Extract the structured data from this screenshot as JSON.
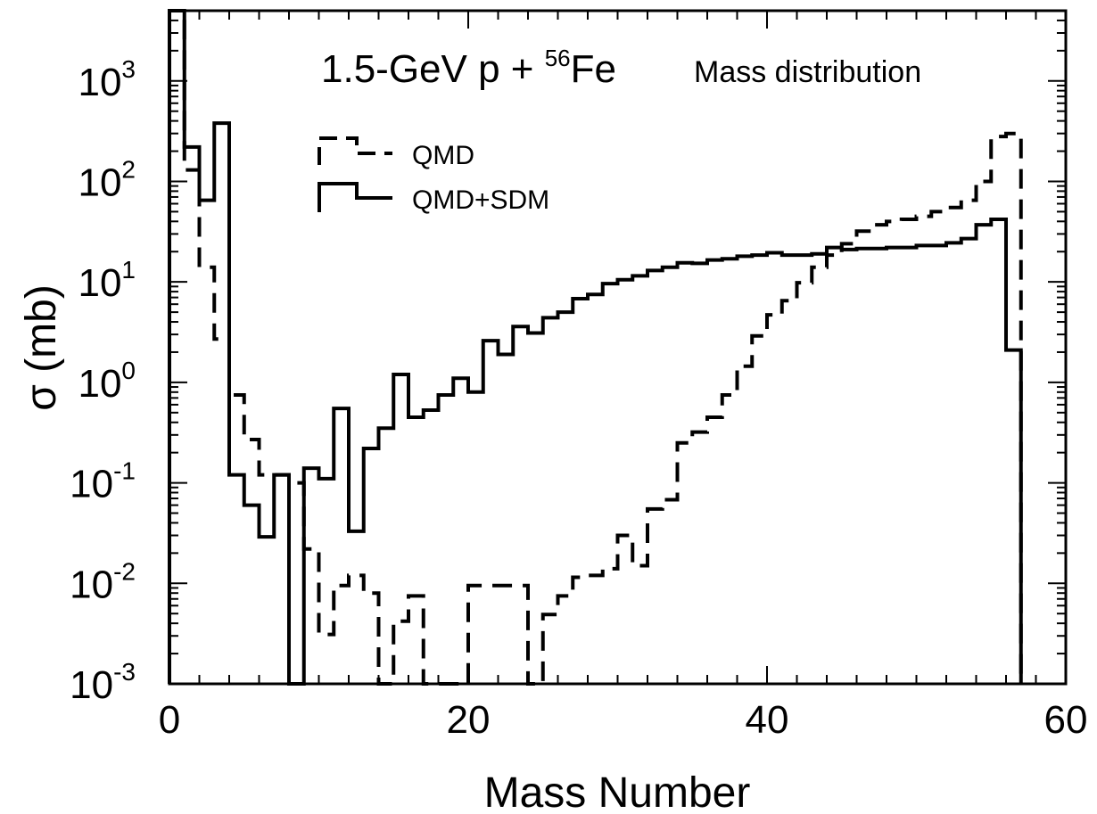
{
  "chart_data": {
    "type": "line",
    "step": true,
    "title_main": "1.5-GeV p + ",
    "title_sup": "56",
    "title_element": "Fe",
    "title_right": "Mass distribution",
    "xlabel": "Mass Number",
    "ylabel": "σ (mb)",
    "xlim": [
      0,
      60
    ],
    "ylim": [
      0.001,
      5000
    ],
    "yscale": "log",
    "xticks": [
      "0",
      "20",
      "40",
      "60"
    ],
    "yticks": [
      {
        "base": "10",
        "exp": "3",
        "value": 1000
      },
      {
        "base": "10",
        "exp": "2",
        "value": 100
      },
      {
        "base": "10",
        "exp": "1",
        "value": 10
      },
      {
        "base": "10",
        "exp": "0",
        "value": 1
      },
      {
        "base": "10",
        "exp": "-1",
        "value": 0.1
      },
      {
        "base": "10",
        "exp": "-2",
        "value": 0.01
      },
      {
        "base": "10",
        "exp": "-3",
        "value": 0.001
      }
    ],
    "legend_position": "upper-left",
    "series": [
      {
        "name": "QMD",
        "style": "dashed",
        "values": [
          [
            0,
            5000
          ],
          [
            1,
            130
          ],
          [
            2,
            14
          ],
          [
            3,
            2.7
          ],
          [
            4,
            0.75
          ],
          [
            5,
            0.27
          ],
          [
            6,
            0.12
          ],
          [
            7,
            0.12
          ],
          [
            8,
            0.1
          ],
          [
            9,
            0.022
          ],
          [
            10,
            0.0031
          ],
          [
            11,
            0.0095
          ],
          [
            12,
            0.012
          ],
          [
            13,
            0.008
          ],
          [
            14,
            null
          ],
          [
            15,
            0.0042
          ],
          [
            16,
            0.0075
          ],
          [
            17,
            null
          ],
          [
            18,
            null
          ],
          [
            19,
            null
          ],
          [
            20,
            0.0095
          ],
          [
            21,
            0.0095
          ],
          [
            22,
            0.0095
          ],
          [
            23,
            0.0095
          ],
          [
            24,
            null
          ],
          [
            25,
            0.0049
          ],
          [
            26,
            0.0075
          ],
          [
            27,
            0.0115
          ],
          [
            28,
            0.012
          ],
          [
            29,
            0.014
          ],
          [
            30,
            0.03
          ],
          [
            31,
            0.015
          ],
          [
            32,
            0.055
          ],
          [
            33,
            0.068
          ],
          [
            34,
            0.25
          ],
          [
            35,
            0.32
          ],
          [
            36,
            0.45
          ],
          [
            37,
            0.75
          ],
          [
            38,
            1.45
          ],
          [
            39,
            2.9
          ],
          [
            40,
            4.7
          ],
          [
            41,
            6.5
          ],
          [
            42,
            9.8
          ],
          [
            43,
            14
          ],
          [
            44,
            18.5
          ],
          [
            45,
            24
          ],
          [
            46,
            32
          ],
          [
            47,
            37
          ],
          [
            48,
            40
          ],
          [
            49,
            42
          ],
          [
            50,
            45
          ],
          [
            51,
            50
          ],
          [
            52,
            55
          ],
          [
            53,
            65
          ],
          [
            54,
            100
          ],
          [
            55,
            280
          ],
          [
            56,
            300
          ]
        ]
      },
      {
        "name": "QMD+SDM",
        "style": "solid",
        "values": [
          [
            0,
            5000
          ],
          [
            1,
            220
          ],
          [
            2,
            65
          ],
          [
            3,
            380
          ],
          [
            4,
            0.12
          ],
          [
            5,
            0.06
          ],
          [
            6,
            0.029
          ],
          [
            7,
            0.12
          ],
          [
            8,
            null
          ],
          [
            9,
            0.14
          ],
          [
            10,
            0.11
          ],
          [
            11,
            0.55
          ],
          [
            12,
            0.033
          ],
          [
            13,
            0.22
          ],
          [
            14,
            0.35
          ],
          [
            15,
            1.2
          ],
          [
            16,
            0.45
          ],
          [
            17,
            0.53
          ],
          [
            18,
            0.75
          ],
          [
            19,
            1.1
          ],
          [
            20,
            0.8
          ],
          [
            21,
            2.6
          ],
          [
            22,
            1.9
          ],
          [
            23,
            3.6
          ],
          [
            24,
            3.1
          ],
          [
            25,
            4.4
          ],
          [
            26,
            5
          ],
          [
            27,
            6.8
          ],
          [
            28,
            7.5
          ],
          [
            29,
            9.6
          ],
          [
            30,
            10.5
          ],
          [
            31,
            11.5
          ],
          [
            32,
            13
          ],
          [
            33,
            14
          ],
          [
            34,
            15.5
          ],
          [
            35,
            15.3
          ],
          [
            36,
            16.5
          ],
          [
            37,
            17
          ],
          [
            38,
            18
          ],
          [
            39,
            18.5
          ],
          [
            40,
            19.5
          ],
          [
            41,
            18.5
          ],
          [
            42,
            18.5
          ],
          [
            43,
            19
          ],
          [
            44,
            22
          ],
          [
            45,
            21
          ],
          [
            46,
            21.5
          ],
          [
            47,
            21.5
          ],
          [
            48,
            22
          ],
          [
            49,
            22
          ],
          [
            50,
            23
          ],
          [
            51,
            23
          ],
          [
            52,
            24.5
          ],
          [
            53,
            27
          ],
          [
            54,
            37
          ],
          [
            55,
            42
          ],
          [
            56,
            2.1
          ]
        ]
      }
    ]
  }
}
